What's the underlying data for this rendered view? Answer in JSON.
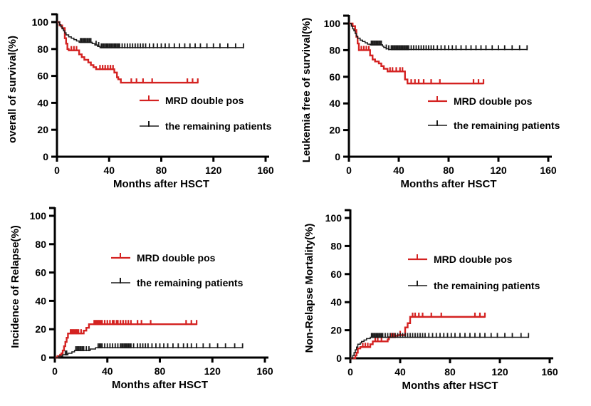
{
  "figure": {
    "background": "#ffffff",
    "axis_color": "#000000",
    "mrd_color": "#d42221",
    "remaining_color": "#1a1a1a"
  },
  "legend": {
    "mrd_label": "MRD double pos",
    "remaining_label": "the remaining patients"
  },
  "chart_data": [
    {
      "type": "line",
      "km_style": "step",
      "title": "",
      "ylabel": "overall of survival(%)",
      "xlabel": "Months after HSCT",
      "xlim": [
        0,
        160
      ],
      "ylim": [
        0,
        100
      ],
      "xticks": [
        0,
        40,
        80,
        120,
        160
      ],
      "yticks": [
        0,
        20,
        40,
        60,
        80,
        100
      ],
      "legend_entries": [
        "MRD double pos",
        "the remaining patients"
      ],
      "legend_position": "inside-right-middle",
      "series": [
        {
          "name": "MRD double pos",
          "color": "#d42221",
          "end": 108,
          "steps": [
            [
              0,
              100
            ],
            [
              2,
              97.5
            ],
            [
              4,
              95.5
            ],
            [
              6,
              88
            ],
            [
              7,
              84
            ],
            [
              8,
              80
            ],
            [
              9,
              79
            ],
            [
              17,
              76
            ],
            [
              19,
              74
            ],
            [
              21,
              72
            ],
            [
              24,
              70
            ],
            [
              26,
              68
            ],
            [
              28,
              66.5
            ],
            [
              30,
              65
            ],
            [
              44,
              62.5
            ],
            [
              46,
              59
            ],
            [
              47,
              57.5
            ],
            [
              49,
              55
            ]
          ],
          "censors": [
            11,
            13,
            15,
            33,
            35,
            37,
            39,
            41,
            43,
            57,
            61,
            66,
            73,
            100,
            104,
            108
          ]
        },
        {
          "name": "the remaining patients",
          "color": "#1a1a1a",
          "end": 143,
          "steps": [
            [
              0,
              100
            ],
            [
              2,
              98
            ],
            [
              3,
              96.5
            ],
            [
              4,
              95
            ],
            [
              5,
              93.5
            ],
            [
              6,
              92
            ],
            [
              7,
              90.5
            ],
            [
              9,
              89
            ],
            [
              11,
              88
            ],
            [
              13,
              87
            ],
            [
              15,
              86
            ],
            [
              17,
              85
            ],
            [
              27,
              84
            ],
            [
              29,
              83
            ],
            [
              31,
              82
            ],
            [
              33,
              81
            ]
          ],
          "censors": [
            18,
            19,
            20,
            21,
            22,
            23,
            24,
            25,
            26,
            30,
            32,
            34,
            35,
            36,
            37,
            38,
            39,
            40,
            41,
            42,
            43,
            44,
            45,
            46,
            47,
            48,
            50,
            52,
            54,
            56,
            58,
            60,
            62,
            64,
            66,
            68,
            71,
            74,
            77,
            80,
            83,
            86,
            90,
            94,
            98,
            102,
            106,
            110,
            115,
            120,
            125,
            131,
            137,
            143
          ]
        }
      ]
    },
    {
      "type": "line",
      "km_style": "step",
      "title": "",
      "ylabel": "Leukemia free of survival(%)",
      "xlabel": "Months after HSCT",
      "xlim": [
        0,
        160
      ],
      "ylim": [
        0,
        100
      ],
      "xticks": [
        0,
        40,
        80,
        120,
        160
      ],
      "yticks": [
        0,
        20,
        40,
        60,
        80,
        100
      ],
      "legend_entries": [
        "MRD double pos",
        "the remaining patients"
      ],
      "legend_position": "inside-right-middle",
      "series": [
        {
          "name": "MRD double pos",
          "color": "#d42221",
          "end": 108,
          "steps": [
            [
              0,
              100
            ],
            [
              3,
              98
            ],
            [
              5,
              95
            ],
            [
              6,
              90
            ],
            [
              7,
              85
            ],
            [
              8,
              80
            ],
            [
              17,
              76
            ],
            [
              19,
              73
            ],
            [
              21,
              71.5
            ],
            [
              24,
              70
            ],
            [
              26,
              68
            ],
            [
              28,
              66
            ],
            [
              31,
              64
            ],
            [
              45,
              58
            ],
            [
              47,
              55
            ]
          ],
          "censors": [
            10,
            12,
            14,
            16,
            33,
            35,
            38,
            41,
            43,
            50,
            53,
            56,
            60,
            66,
            73,
            100,
            104,
            108
          ]
        },
        {
          "name": "the remaining patients",
          "color": "#1a1a1a",
          "end": 143,
          "steps": [
            [
              0,
              100
            ],
            [
              2,
              98
            ],
            [
              3,
              96
            ],
            [
              4,
              94.5
            ],
            [
              5,
              92.5
            ],
            [
              6,
              90.5
            ],
            [
              7,
              89
            ],
            [
              9,
              87.5
            ],
            [
              11,
              86.5
            ],
            [
              13,
              85.5
            ],
            [
              15,
              84.5
            ],
            [
              17,
              84
            ],
            [
              27,
              83
            ],
            [
              28,
              82
            ],
            [
              30,
              81
            ],
            [
              32,
              80.5
            ]
          ],
          "censors": [
            18,
            19,
            20,
            21,
            22,
            23,
            24,
            25,
            26,
            30,
            32,
            34,
            35,
            36,
            37,
            38,
            39,
            40,
            41,
            42,
            43,
            44,
            45,
            46,
            47,
            48,
            50,
            52,
            54,
            56,
            58,
            60,
            62,
            64,
            66,
            68,
            71,
            74,
            77,
            80,
            83,
            86,
            90,
            94,
            98,
            102,
            106,
            110,
            115,
            120,
            125,
            131,
            137,
            143
          ]
        }
      ]
    },
    {
      "type": "line",
      "km_style": "step",
      "title": "",
      "ylabel": "Incidence of Relapse(%)",
      "xlabel": "Months after HSCT",
      "xlim": [
        0,
        160
      ],
      "ylim": [
        0,
        100
      ],
      "xticks": [
        0,
        40,
        80,
        120,
        160
      ],
      "yticks": [
        0,
        20,
        40,
        60,
        80,
        100
      ],
      "legend_entries": [
        "MRD double pos",
        "the remaining patients"
      ],
      "legend_position": "inside-center-upper",
      "series": [
        {
          "name": "MRD double pos",
          "color": "#d42221",
          "end": 108,
          "steps": [
            [
              0,
              0
            ],
            [
              2,
              1
            ],
            [
              4,
              2
            ],
            [
              5,
              3
            ],
            [
              6,
              5
            ],
            [
              7,
              8
            ],
            [
              8,
              11
            ],
            [
              9,
              14
            ],
            [
              10,
              17
            ],
            [
              22,
              19
            ],
            [
              24,
              21
            ],
            [
              26,
              23.5
            ]
          ],
          "censors": [
            12,
            13,
            14,
            15,
            16,
            17,
            18,
            20,
            30,
            31,
            32,
            33,
            34,
            35,
            36,
            38,
            40,
            42,
            44,
            45,
            47,
            48,
            50,
            52,
            54,
            56,
            58,
            63,
            66,
            73,
            100,
            104,
            108
          ]
        },
        {
          "name": "the remaining patients",
          "color": "#1a1a1a",
          "end": 143,
          "steps": [
            [
              0,
              0
            ],
            [
              3,
              1
            ],
            [
              6,
              2
            ],
            [
              10,
              3
            ],
            [
              13,
              4
            ],
            [
              15,
              5
            ],
            [
              27,
              6
            ],
            [
              31,
              7
            ]
          ],
          "censors": [
            8,
            9,
            16,
            17,
            18,
            19,
            20,
            21,
            22,
            24,
            26,
            33,
            34,
            35,
            36,
            38,
            40,
            42,
            44,
            46,
            48,
            50,
            51,
            52,
            53,
            54,
            55,
            56,
            57,
            58,
            60,
            63,
            65,
            67,
            69,
            71,
            74,
            77,
            80,
            83,
            86,
            90,
            94,
            98,
            101,
            104,
            108,
            113,
            118,
            124,
            130,
            137,
            143
          ]
        }
      ]
    },
    {
      "type": "line",
      "km_style": "step",
      "title": "",
      "ylabel": "Non-Relapse Mortality(%)",
      "xlabel": "Months after HSCT",
      "xlim": [
        0,
        160
      ],
      "ylim": [
        0,
        100
      ],
      "xticks": [
        0,
        40,
        80,
        120,
        160
      ],
      "yticks": [
        0,
        20,
        40,
        60,
        80,
        100
      ],
      "legend_entries": [
        "MRD double pos",
        "the remaining patients"
      ],
      "legend_position": "inside-center-upper",
      "series": [
        {
          "name": "MRD double pos",
          "color": "#d42221",
          "end": 108,
          "steps": [
            [
              0,
              0
            ],
            [
              4,
              2
            ],
            [
              5,
              4
            ],
            [
              6,
              7
            ],
            [
              8,
              8
            ],
            [
              16,
              10
            ],
            [
              18,
              12
            ],
            [
              30,
              13.5
            ],
            [
              31,
              15
            ],
            [
              36,
              16
            ],
            [
              38,
              16.5
            ],
            [
              44,
              22
            ],
            [
              46,
              25
            ],
            [
              48,
              29.5
            ]
          ],
          "censors": [
            10,
            12,
            14,
            20,
            22,
            25,
            33,
            35,
            40,
            50,
            52,
            55,
            58,
            65,
            73,
            100,
            104,
            108
          ]
        },
        {
          "name": "the remaining patients",
          "color": "#1a1a1a",
          "end": 143,
          "steps": [
            [
              0,
              0
            ],
            [
              2,
              2
            ],
            [
              3,
              4
            ],
            [
              4,
              6
            ],
            [
              5,
              8
            ],
            [
              6,
              10
            ],
            [
              8,
              11
            ],
            [
              9,
              12
            ],
            [
              11,
              13
            ],
            [
              13,
              14
            ],
            [
              16,
              15
            ]
          ],
          "censors": [
            17,
            18,
            19,
            20,
            21,
            22,
            23,
            24,
            25,
            26,
            28,
            30,
            32,
            34,
            36,
            38,
            40,
            42,
            44,
            46,
            48,
            50,
            52,
            54,
            56,
            58,
            60,
            63,
            66,
            69,
            72,
            75,
            78,
            81,
            84,
            88,
            92,
            96,
            100,
            104,
            108,
            113,
            118,
            124,
            130,
            137,
            143
          ]
        }
      ]
    }
  ]
}
